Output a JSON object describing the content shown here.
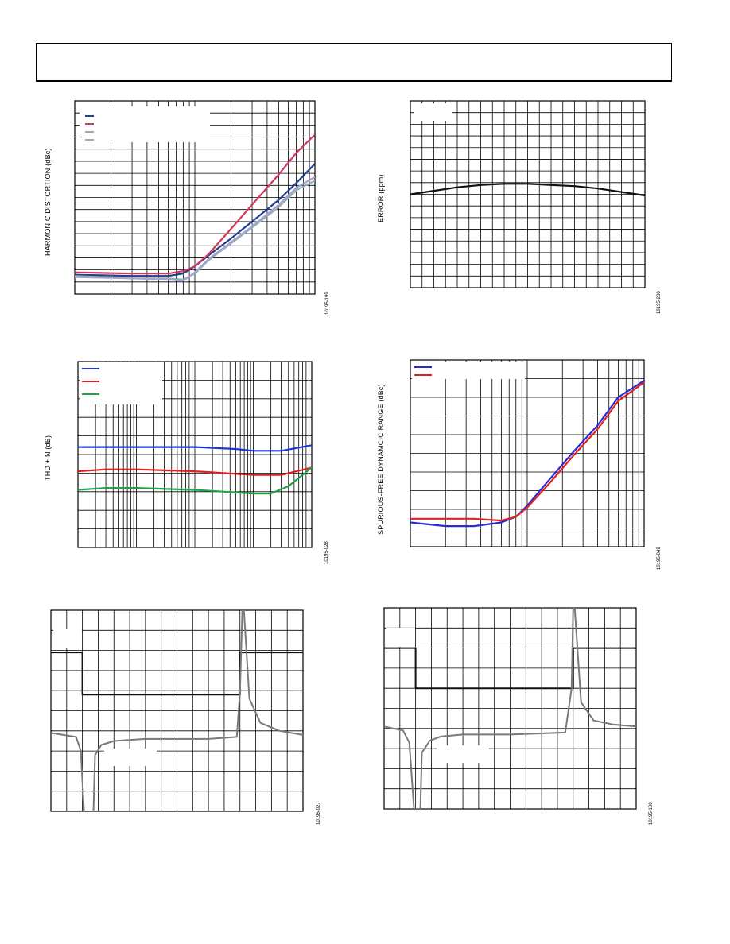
{
  "header": {
    "text": ""
  },
  "chart_data": [
    {
      "id": "hd",
      "type": "line",
      "ylabel": "HARMONIC DISTORTION (dBc)",
      "figure_id": "10195-199",
      "xscale": "log",
      "xlim": [
        0.1,
        10
      ],
      "ylim": [
        0,
        16
      ],
      "grid": true,
      "legend": "top-left",
      "series": [
        {
          "color": "#1f3f8f",
          "x": [
            0.1,
            0.3,
            0.6,
            0.8,
            1.0,
            1.3,
            2,
            3,
            5,
            7,
            10
          ],
          "y": [
            1.6,
            1.5,
            1.5,
            1.7,
            2.3,
            3.2,
            4.6,
            6.0,
            7.8,
            9.2,
            10.8
          ]
        },
        {
          "color": "#d4375a",
          "x": [
            0.1,
            0.3,
            0.6,
            0.8,
            1.0,
            1.3,
            2,
            3,
            5,
            7,
            10
          ],
          "y": [
            1.8,
            1.7,
            1.7,
            1.9,
            2.3,
            3.3,
            5.4,
            7.4,
            9.9,
            11.7,
            13.2
          ]
        },
        {
          "color": "#8fb0b8",
          "x": [
            0.1,
            0.3,
            0.6,
            0.8,
            1.0,
            1.3,
            2,
            3,
            5,
            7,
            10
          ],
          "y": [
            1.5,
            1.3,
            1.3,
            1.2,
            1.7,
            2.8,
            4.2,
            5.5,
            7.2,
            8.6,
            9.4
          ]
        },
        {
          "color": "#a9a2cc",
          "x": [
            0.1,
            0.3,
            0.6,
            0.8,
            1.0,
            1.3,
            2,
            3,
            5,
            7,
            10
          ],
          "y": [
            1.4,
            1.3,
            1.2,
            1.1,
            1.8,
            2.9,
            4.3,
            5.6,
            7.4,
            8.8,
            9.7
          ]
        }
      ]
    },
    {
      "id": "err",
      "type": "line",
      "ylabel": "ERROR (ppm)",
      "figure_id": "10195-200",
      "xlim": [
        0,
        20
      ],
      "ylim": [
        0,
        16
      ],
      "grid": true,
      "legend": "top-left",
      "series": [
        {
          "color": "#111111",
          "x": [
            0,
            2,
            4,
            6,
            8,
            10,
            12,
            14,
            16,
            18,
            20
          ],
          "y": [
            8.0,
            8.3,
            8.6,
            8.8,
            8.9,
            8.9,
            8.8,
            8.7,
            8.5,
            8.2,
            7.9
          ]
        }
      ]
    },
    {
      "id": "thd",
      "type": "line",
      "ylabel": "THD + N (dB)",
      "figure_id": "10195-028",
      "xscale": "log",
      "xlim": [
        10,
        100000
      ],
      "ylim": [
        0,
        10
      ],
      "grid": true,
      "legend": "top-left",
      "series": [
        {
          "color": "#1f35d6",
          "x": [
            10,
            100,
            1000,
            5000,
            10000,
            30000,
            100000
          ],
          "y": [
            5.4,
            5.4,
            5.4,
            5.3,
            5.2,
            5.2,
            5.5
          ]
        },
        {
          "color": "#e0201e",
          "x": [
            10,
            30,
            100,
            1000,
            10000,
            30000,
            100000
          ],
          "y": [
            4.1,
            4.2,
            4.2,
            4.1,
            3.9,
            3.9,
            4.3
          ]
        },
        {
          "color": "#1ea34a",
          "x": [
            10,
            30,
            100,
            1000,
            10000,
            20000,
            40000,
            100000
          ],
          "y": [
            3.1,
            3.2,
            3.2,
            3.1,
            2.9,
            2.9,
            3.3,
            4.3
          ]
        }
      ]
    },
    {
      "id": "sfdr",
      "type": "line",
      "ylabel": "SPURIOUS-FREE DYNAMCIC RANGE (dBc)",
      "figure_id": "10195-049",
      "xscale": "log",
      "xlim": [
        0.1,
        10
      ],
      "ylim": [
        0,
        10
      ],
      "grid": true,
      "legend": "top-left",
      "series": [
        {
          "color": "#2a2ad8",
          "x": [
            0.1,
            0.2,
            0.35,
            0.6,
            0.8,
            1.0,
            1.5,
            2.5,
            4,
            6,
            10
          ],
          "y": [
            1.3,
            1.1,
            1.1,
            1.3,
            1.6,
            2.2,
            3.5,
            5.1,
            6.5,
            8.0,
            8.9
          ]
        },
        {
          "color": "#e2231c",
          "x": [
            0.1,
            0.2,
            0.35,
            0.6,
            0.8,
            1.0,
            1.5,
            2.5,
            4,
            6,
            10
          ],
          "y": [
            1.5,
            1.5,
            1.5,
            1.4,
            1.6,
            2.1,
            3.3,
            4.9,
            6.3,
            7.8,
            8.8
          ]
        }
      ]
    },
    {
      "id": "step1",
      "type": "line",
      "figure_id": "10195-027",
      "xlim": [
        0,
        16
      ],
      "ylim": [
        0,
        10
      ],
      "grid": true,
      "series": [
        {
          "color": "#111111",
          "x": [
            0,
            2,
            2,
            12,
            12,
            16
          ],
          "y": [
            7.9,
            7.9,
            5.8,
            5.8,
            7.9,
            7.9
          ]
        },
        {
          "color": "#7a7a7a",
          "x": [
            0,
            1.6,
            1.9,
            2.1,
            2.7,
            2.8,
            3.2,
            4,
            6,
            10,
            11.8,
            12.0,
            12.15,
            12.25,
            12.6,
            13.3,
            14.5,
            16
          ],
          "y": [
            3.9,
            3.7,
            3.0,
            0.0,
            0.0,
            2.8,
            3.3,
            3.5,
            3.6,
            3.6,
            3.7,
            6.0,
            10.0,
            10.0,
            5.6,
            4.4,
            4.0,
            3.8
          ]
        }
      ]
    },
    {
      "id": "step2",
      "type": "line",
      "figure_id": "10195-100",
      "xlim": [
        0,
        16
      ],
      "ylim": [
        0,
        10
      ],
      "grid": true,
      "series": [
        {
          "color": "#111111",
          "x": [
            0,
            2,
            2,
            12,
            12,
            16
          ],
          "y": [
            8.0,
            8.0,
            6.0,
            6.0,
            8.0,
            8.0
          ]
        },
        {
          "color": "#7a7a7a",
          "x": [
            0,
            1.2,
            1.6,
            1.9,
            2.3,
            2.4,
            2.9,
            3.6,
            5,
            8,
            11.5,
            11.9,
            12.0,
            12.1,
            12.5,
            13.3,
            14.5,
            16
          ],
          "y": [
            4.1,
            3.9,
            3.3,
            0.0,
            0.0,
            2.8,
            3.4,
            3.6,
            3.7,
            3.7,
            3.8,
            6.0,
            10.0,
            10.0,
            5.3,
            4.4,
            4.2,
            4.1
          ]
        }
      ]
    }
  ]
}
